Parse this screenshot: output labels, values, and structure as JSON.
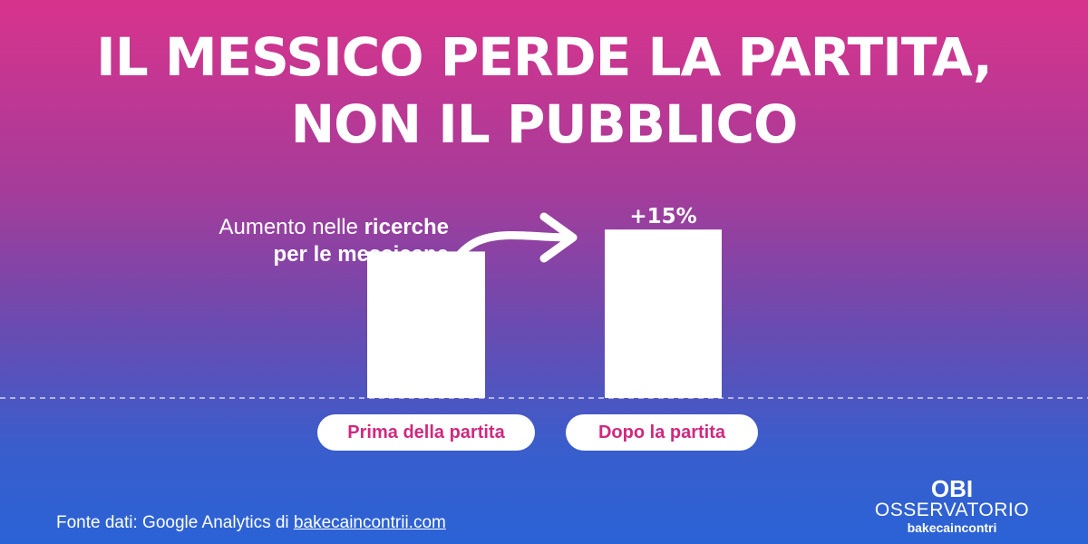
{
  "title_lines": [
    "IL MESSICO PERDE LA PARTITA,",
    "NON IL PUBBLICO"
  ],
  "annotation": {
    "line1_regular": "Aumento nelle ",
    "line1_bold": "ricerche",
    "line2": "per le messicane"
  },
  "chart_data": {
    "type": "bar",
    "title": "IL MESSICO PERDE LA PARTITA, NON IL PUBBLICO",
    "categories": [
      "Prima della partita",
      "Dopo la partita"
    ],
    "values": [
      100,
      115
    ],
    "ylim": [
      0,
      125
    ],
    "data_labels": [
      "",
      "+15%"
    ],
    "grid": false,
    "bar_color": "#ffffff"
  },
  "source": {
    "prefix": "Fonte dati: Google Analytics di ",
    "link_text": "bakecaincontrii.com"
  },
  "brand": {
    "line1": "OBI",
    "line2": "OSSERVATORIO",
    "line3": "bakecaincontri"
  },
  "colors": {
    "gradient_top": "#d8338c",
    "gradient_bottom": "#2a63d6",
    "pill_text": "#d1287f"
  }
}
